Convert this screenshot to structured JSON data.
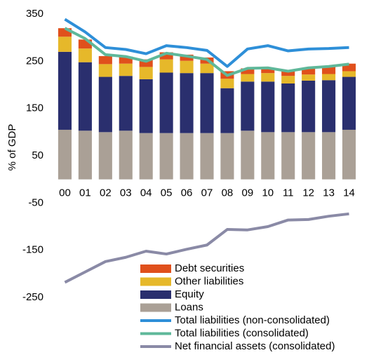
{
  "chart_data": {
    "type": "bar",
    "stacked": true,
    "y_label": "% of GDP",
    "categories": [
      "00",
      "01",
      "02",
      "03",
      "04",
      "05",
      "06",
      "07",
      "08",
      "09",
      "10",
      "11",
      "12",
      "13",
      "14"
    ],
    "ylim": [
      -250,
      350
    ],
    "yticks": [
      -250,
      -150,
      -50,
      50,
      150,
      250,
      350
    ],
    "grid": false,
    "legend": "bottom",
    "series": [
      {
        "name": "Debt securities",
        "kind": "bar",
        "color": "#e0501c",
        "values": [
          18,
          19,
          17,
          15,
          16,
          15,
          13,
          13,
          16,
          12,
          11,
          12,
          14,
          15,
          16
        ]
      },
      {
        "name": "Other liabilities",
        "kind": "bar",
        "color": "#e6b82a",
        "values": [
          32,
          29,
          27,
          26,
          26,
          28,
          26,
          20,
          20,
          16,
          18,
          16,
          13,
          13,
          12
        ]
      },
      {
        "name": "Equity",
        "kind": "bar",
        "color": "#2a2f6e",
        "values": [
          165,
          145,
          117,
          116,
          114,
          128,
          127,
          127,
          95,
          104,
          107,
          103,
          109,
          110,
          112
        ]
      },
      {
        "name": "Loans",
        "kind": "bar",
        "color": "#aaa096",
        "values": [
          105,
          103,
          100,
          103,
          98,
          98,
          98,
          98,
          98,
          103,
          100,
          100,
          100,
          100,
          105
        ]
      },
      {
        "name": "Total liabilities (non-consolidated)",
        "kind": "line",
        "color": "#2e8fd8",
        "values": [
          339,
          312,
          279,
          275,
          266,
          283,
          279,
          273,
          239,
          276,
          283,
          272,
          276,
          277,
          279
        ]
      },
      {
        "name": "Total liabilities (consolidated)",
        "kind": "line",
        "color": "#5fb89a",
        "values": [
          320,
          298,
          264,
          260,
          250,
          267,
          261,
          254,
          220,
          235,
          236,
          229,
          236,
          239,
          244
        ]
      },
      {
        "name": "Net financial assets (consolidated)",
        "kind": "line",
        "color": "#8a8aa6",
        "values": [
          -218,
          -196,
          -174,
          -165,
          -152,
          -158,
          -148,
          -139,
          -106,
          -107,
          -100,
          -86,
          -85,
          -78,
          -73
        ]
      }
    ]
  }
}
